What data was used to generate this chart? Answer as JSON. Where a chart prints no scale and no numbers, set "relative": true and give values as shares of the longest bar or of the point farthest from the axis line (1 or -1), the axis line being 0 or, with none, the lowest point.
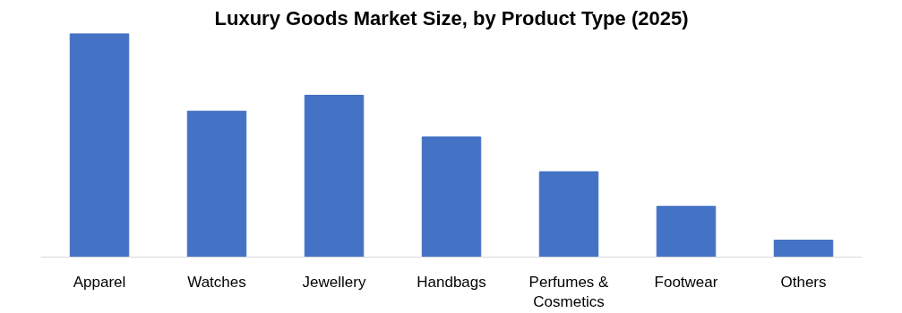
{
  "chart_data": {
    "type": "bar",
    "title": "Luxury Goods Market Size, by Product Type (2025)",
    "relative": true,
    "categories": [
      "Apparel",
      "Watches",
      "Jewellery",
      "Handbags",
      "Perfumes & Cosmetics",
      "Footwear",
      "Others"
    ],
    "values": [
      1,
      0.653,
      0.724,
      0.538,
      0.382,
      0.227,
      0.076
    ],
    "color": "#4472c4",
    "grid": false
  }
}
